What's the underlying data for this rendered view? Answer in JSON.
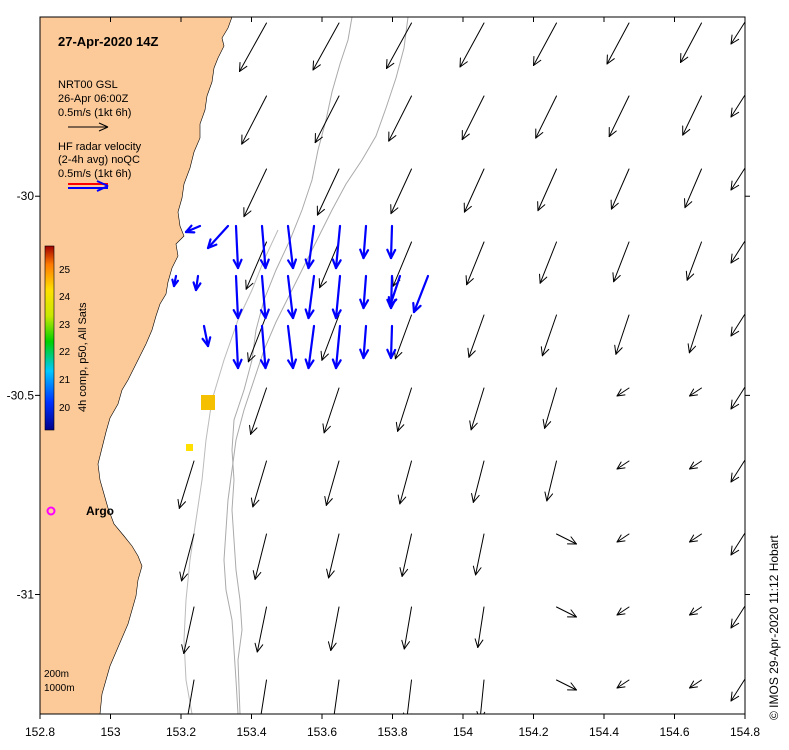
{
  "map": {
    "title": "27-Apr-2020 14Z",
    "lon_range": [
      152.8,
      154.8
    ],
    "lat_range": [
      -31.3,
      -29.55
    ],
    "x_ticks": [
      "152.8",
      "153",
      "153.2",
      "153.4",
      "153.6",
      "153.8",
      "154",
      "154.2",
      "154.4",
      "154.6",
      "154.8"
    ],
    "y_ticks": [
      "-30",
      "-30.5",
      "-31"
    ],
    "colors": {
      "land": "#fcc998",
      "model_arrow": "#000000",
      "radar_arrow": "#0000ff",
      "isobath": "#aaaaaa"
    }
  },
  "legend": {
    "model_title": "NRT00 GSL",
    "model_time": "26-Apr 06:00Z",
    "model_scale": "0.5m/s (1kt 6h)",
    "radar_title": "HF radar velocity",
    "radar_avg": "(2-4h avg) noQC",
    "radar_scale": "0.5m/s (1kt 6h)"
  },
  "colorbar": {
    "label": "4h comp, p50, All Sats",
    "ticks": [
      "25",
      "24",
      "23",
      "22",
      "21",
      "20"
    ],
    "range": [
      19.5,
      26
    ]
  },
  "argo": {
    "label": "Argo",
    "lon": 152.83,
    "lat": -30.82
  },
  "isobaths": {
    "label_200": "200m",
    "label_1000": "1000m"
  },
  "sst_patches": [
    {
      "lon": 153.28,
      "lat": -30.535,
      "value": 24.2
    },
    {
      "lon": 153.23,
      "lat": -30.645,
      "value": 23.4
    }
  ],
  "credit": "© IMOS 29-Apr-2020 11:12 Hobart"
}
